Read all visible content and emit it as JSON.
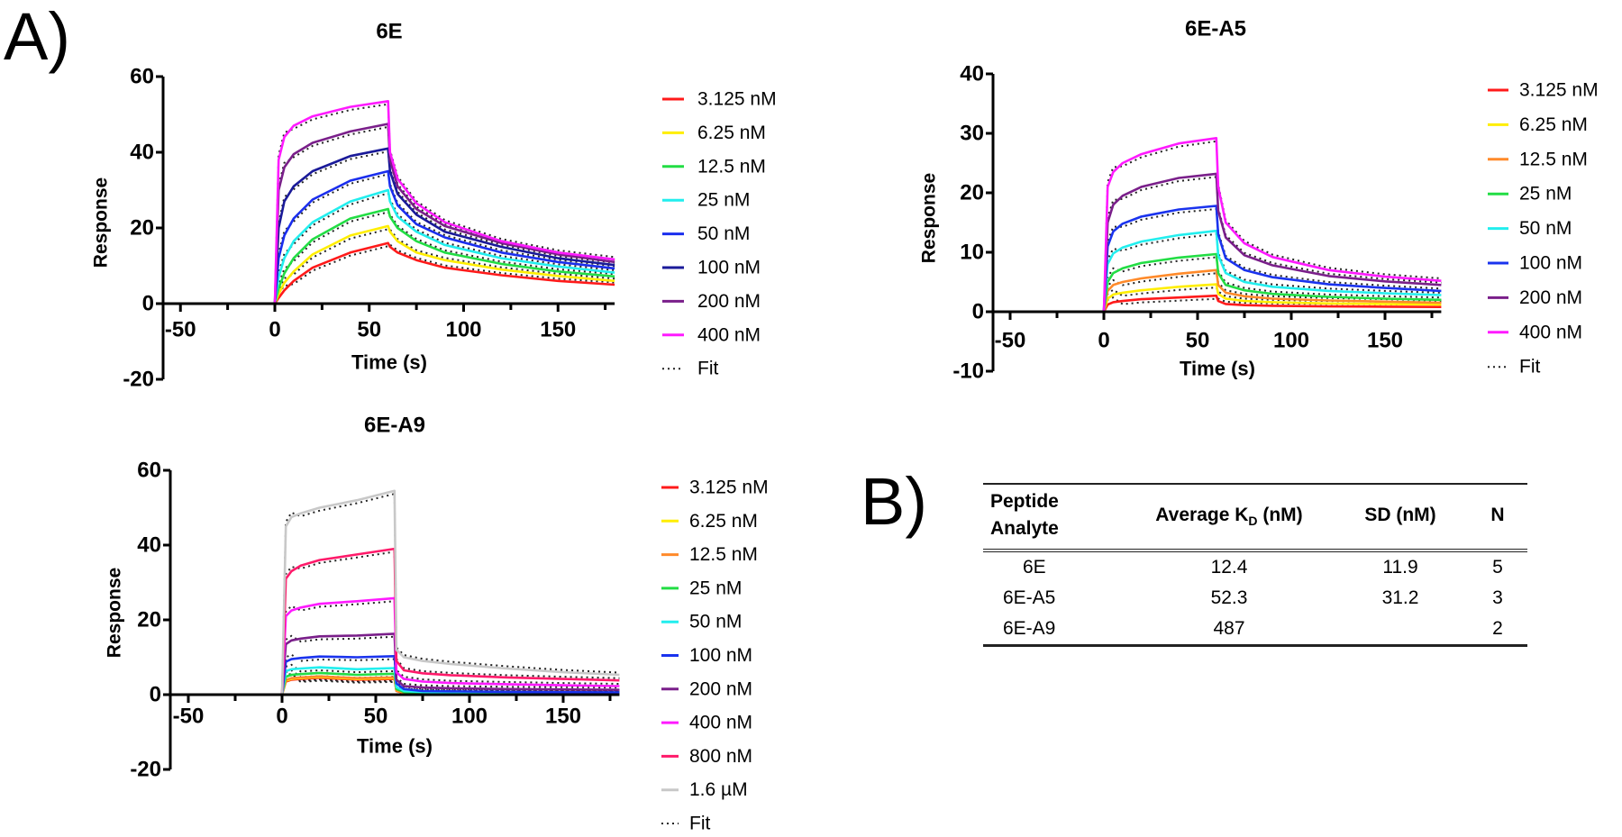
{
  "panel_labels": {
    "a": "A)",
    "b": "B)"
  },
  "chart_data": [
    {
      "type": "line",
      "title": "6E",
      "xlabel": "Time (s)",
      "ylabel": "Response",
      "xlim": [
        -60,
        180
      ],
      "ylim": [
        -20,
        60
      ],
      "xticks": [
        -50,
        0,
        50,
        100,
        150
      ],
      "yticks": [
        -20,
        0,
        20,
        40,
        60
      ],
      "fit_label": "Fit",
      "x": [
        -60,
        0,
        2,
        5,
        10,
        20,
        40,
        60,
        61,
        65,
        75,
        90,
        120,
        150,
        180
      ],
      "series": [
        {
          "name": "3.125 nM",
          "color": "#ff1a1a",
          "values": [
            0,
            0,
            1.5,
            3.5,
            6,
            9.5,
            13.5,
            16,
            15,
            13.5,
            11.5,
            9.5,
            7.5,
            6,
            5
          ]
        },
        {
          "name": "6.25 nM",
          "color": "#ffee00",
          "values": [
            0,
            0,
            2.5,
            5.5,
            8.5,
            13,
            18,
            20.5,
            19,
            16.5,
            13.5,
            11.5,
            9,
            7.3,
            6
          ]
        },
        {
          "name": "12.5 nM",
          "color": "#22dd44",
          "values": [
            0,
            0,
            4,
            8,
            12,
            17,
            22.5,
            25,
            23,
            20,
            16.5,
            13.5,
            10.5,
            8.5,
            7.2
          ]
        },
        {
          "name": "25 nM",
          "color": "#22eeee",
          "values": [
            0,
            0,
            7,
            12,
            16.5,
            21.5,
            27,
            30,
            27,
            23,
            19,
            15.5,
            12,
            9.8,
            8.2
          ]
        },
        {
          "name": "50 nM",
          "color": "#1a2eee",
          "values": [
            0,
            0,
            12,
            18,
            22.5,
            27.5,
            32.5,
            35,
            31,
            26,
            21,
            17.5,
            13.5,
            11,
            9.3
          ]
        },
        {
          "name": "100 nM",
          "color": "#1a1a99",
          "values": [
            0,
            0,
            20,
            27,
            31,
            35,
            39,
            41,
            35,
            29,
            23.5,
            19,
            15,
            12,
            10.2
          ]
        },
        {
          "name": "200 nM",
          "color": "#7a1f8a",
          "values": [
            0,
            0,
            30,
            36,
            39.5,
            42.5,
            45.5,
            47.5,
            38,
            31,
            25,
            20.5,
            16,
            13,
            11
          ]
        },
        {
          "name": "400 nM",
          "color": "#ff1aff",
          "values": [
            0,
            0,
            38,
            44,
            47,
            49.5,
            52,
            53.5,
            40,
            33,
            26.5,
            21.5,
            16.5,
            13.5,
            11.7
          ]
        }
      ]
    },
    {
      "type": "line",
      "title": "6E-A5",
      "xlabel": "Time (s)",
      "ylabel": "Response",
      "xlim": [
        -60,
        180
      ],
      "ylim": [
        -10,
        40
      ],
      "xticks": [
        -50,
        0,
        50,
        100,
        150
      ],
      "yticks": [
        -10,
        0,
        10,
        20,
        30,
        40
      ],
      "fit_label": "Fit",
      "x": [
        -60,
        0,
        2,
        5,
        10,
        20,
        40,
        60,
        61,
        65,
        75,
        90,
        120,
        150,
        180
      ],
      "series": [
        {
          "name": "3.125 nM",
          "color": "#ff1a1a",
          "values": [
            0,
            0,
            1.2,
            1.6,
            1.8,
            2.1,
            2.4,
            2.7,
            1.8,
            1.3,
            1.1,
            1.0,
            0.9,
            0.85,
            0.8
          ]
        },
        {
          "name": "6.25 nM",
          "color": "#ffee00",
          "values": [
            0,
            0,
            2.2,
            2.9,
            3.2,
            3.6,
            4.2,
            4.6,
            3,
            2.2,
            1.8,
            1.6,
            1.4,
            1.3,
            1.2
          ]
        },
        {
          "name": "12.5 nM",
          "color": "#ff8a2a",
          "values": [
            0,
            0,
            3.5,
            4.5,
            5,
            5.6,
            6.4,
            7,
            4.5,
            3.2,
            2.6,
            2.2,
            1.9,
            1.7,
            1.5
          ]
        },
        {
          "name": "25 nM",
          "color": "#22dd44",
          "values": [
            0,
            0,
            5,
            6.5,
            7.3,
            8.2,
            9.1,
            9.7,
            6.5,
            4.5,
            3.6,
            3,
            2.5,
            2.2,
            2.0
          ]
        },
        {
          "name": "50 nM",
          "color": "#22eeee",
          "values": [
            0,
            0,
            8,
            9.8,
            10.8,
            11.8,
            12.9,
            13.6,
            9.5,
            6.5,
            5,
            4.2,
            3.5,
            3.1,
            2.8
          ]
        },
        {
          "name": "100 nM",
          "color": "#1a33ee",
          "values": [
            0,
            0,
            11,
            13.5,
            14.8,
            16,
            17.2,
            17.8,
            13,
            9,
            7,
            5.8,
            4.6,
            4,
            3.5
          ]
        },
        {
          "name": "200 nM",
          "color": "#7a1f8a",
          "values": [
            0,
            0,
            15,
            18,
            19.5,
            21,
            22.5,
            23.2,
            17,
            12.5,
            9.5,
            7.8,
            6,
            5.1,
            4.5
          ]
        },
        {
          "name": "400 nM",
          "color": "#ff1aff",
          "values": [
            0,
            0,
            21,
            23.5,
            25,
            26.5,
            28.3,
            29.2,
            21,
            15,
            11.5,
            9.2,
            7,
            5.9,
            5.2
          ]
        }
      ]
    },
    {
      "type": "line",
      "title": "6E-A9",
      "xlabel": "Time (s)",
      "ylabel": "Response",
      "xlim": [
        -60,
        180
      ],
      "ylim": [
        -20,
        60
      ],
      "xticks": [
        -50,
        0,
        50,
        100,
        150
      ],
      "yticks": [
        -20,
        0,
        20,
        40,
        60
      ],
      "fit_label": "Fit",
      "x": [
        -60,
        0,
        2,
        5,
        10,
        20,
        40,
        60,
        61,
        65,
        75,
        90,
        120,
        150,
        180
      ],
      "series": [
        {
          "name": "3.125 nM",
          "color": "#ff1a1a",
          "values": [
            0,
            0,
            3.5,
            4,
            4.2,
            4.5,
            4,
            4.2,
            1,
            0.4,
            0.3,
            0.2,
            0.15,
            0.1,
            0.1
          ]
        },
        {
          "name": "6.25 nM",
          "color": "#ffee00",
          "values": [
            0,
            0,
            3.7,
            4.2,
            4.4,
            4.7,
            4.2,
            4.4,
            1.1,
            0.5,
            0.35,
            0.25,
            0.2,
            0.2,
            0.2
          ]
        },
        {
          "name": "12.5 nM",
          "color": "#ff8a2a",
          "values": [
            0,
            0,
            3.9,
            4.4,
            4.6,
            4.9,
            4.4,
            4.6,
            1.2,
            0.55,
            0.4,
            0.3,
            0.25,
            0.2,
            0.2
          ]
        },
        {
          "name": "25 nM",
          "color": "#22dd44",
          "values": [
            0,
            0,
            4.8,
            5.3,
            5.5,
            5.8,
            5.3,
            5.6,
            1.5,
            0.7,
            0.5,
            0.4,
            0.35,
            0.3,
            0.3
          ]
        },
        {
          "name": "50 nM",
          "color": "#22eeee",
          "values": [
            0,
            0,
            6.3,
            6.8,
            7,
            7.3,
            6.8,
            7.1,
            2,
            1,
            0.7,
            0.6,
            0.5,
            0.45,
            0.4
          ]
        },
        {
          "name": "100 nM",
          "color": "#1a33ee",
          "values": [
            0,
            0,
            8.8,
            9.5,
            9.8,
            10.2,
            10,
            10.3,
            3,
            1.5,
            1,
            0.9,
            0.75,
            0.65,
            0.6
          ]
        },
        {
          "name": "200 nM",
          "color": "#7a1f8a",
          "values": [
            0,
            0,
            13.5,
            14.5,
            15,
            15.6,
            15.8,
            16.3,
            4,
            2.3,
            1.9,
            1.7,
            1.5,
            1.4,
            1.3
          ]
        },
        {
          "name": "400 nM",
          "color": "#ff1aff",
          "values": [
            0,
            0,
            21,
            22.5,
            23.3,
            24.3,
            25,
            25.8,
            6,
            4.2,
            3.5,
            3.1,
            2.8,
            2.5,
            2.3
          ]
        },
        {
          "name": "800 nM",
          "color": "#ff1a6a",
          "values": [
            0,
            0,
            31,
            33,
            34.5,
            36,
            37.5,
            39,
            9,
            6.5,
            5.7,
            5.2,
            4.6,
            4.2,
            3.8
          ]
        },
        {
          "name": "1.6 µM",
          "color": "#c8c8c8",
          "values": [
            0,
            0,
            45,
            47.5,
            48.5,
            50,
            52,
            54.5,
            12,
            10,
            9,
            8.2,
            7,
            6,
            5.3
          ]
        }
      ]
    }
  ],
  "table": {
    "headers": {
      "peptide_line1": "Peptide",
      "peptide_line2": "Analyte",
      "avg_kd": "Average K",
      "avg_kd_sub": "D",
      "avg_kd_unit": " (nM)",
      "sd": "SD (nM)",
      "n": "N"
    },
    "rows": [
      {
        "peptide": "6E",
        "avg_kd": "12.4",
        "sd": "11.9",
        "n": "5"
      },
      {
        "peptide": "6E-A5",
        "avg_kd": "52.3",
        "sd": "31.2",
        "n": "3"
      },
      {
        "peptide": "6E-A9",
        "avg_kd": "487",
        "sd": "",
        "n": "2"
      }
    ]
  }
}
